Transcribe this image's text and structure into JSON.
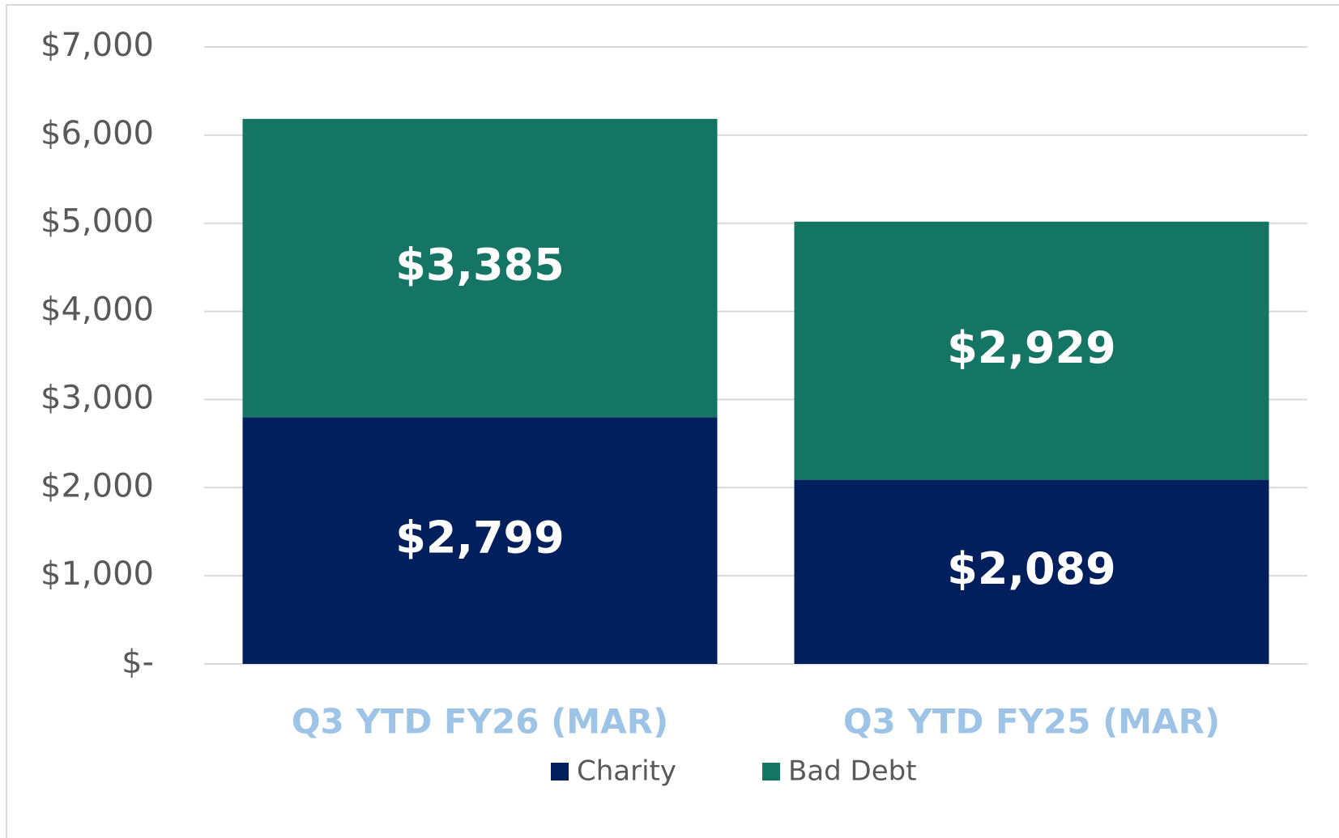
{
  "chart_data": {
    "type": "stacked_bar",
    "categories": [
      "Q3 YTD FY26 (MAR)",
      "Q3 YTD FY25 (MAR)"
    ],
    "series": [
      {
        "name": "Charity",
        "color": "#001f5c",
        "values": [
          2799,
          2089
        ],
        "value_labels": [
          "$2,799",
          "$2,089"
        ]
      },
      {
        "name": "Bad Debt",
        "color": "#157565",
        "values": [
          3385,
          2929
        ],
        "value_labels": [
          "$3,385",
          "$2,929"
        ]
      }
    ],
    "ylim": [
      0,
      7000
    ],
    "yticks": [
      {
        "value": 0,
        "label": "$-"
      },
      {
        "value": 1000,
        "label": "$1,000"
      },
      {
        "value": 2000,
        "label": "$2,000"
      },
      {
        "value": 3000,
        "label": "$3,000"
      },
      {
        "value": 4000,
        "label": "$4,000"
      },
      {
        "value": 5000,
        "label": "$5,000"
      },
      {
        "value": 6000,
        "label": "$6,000"
      },
      {
        "value": 7000,
        "label": "$7,000"
      }
    ],
    "grid": true,
    "legend": "bottom",
    "category_color": "#9dc3e6"
  }
}
